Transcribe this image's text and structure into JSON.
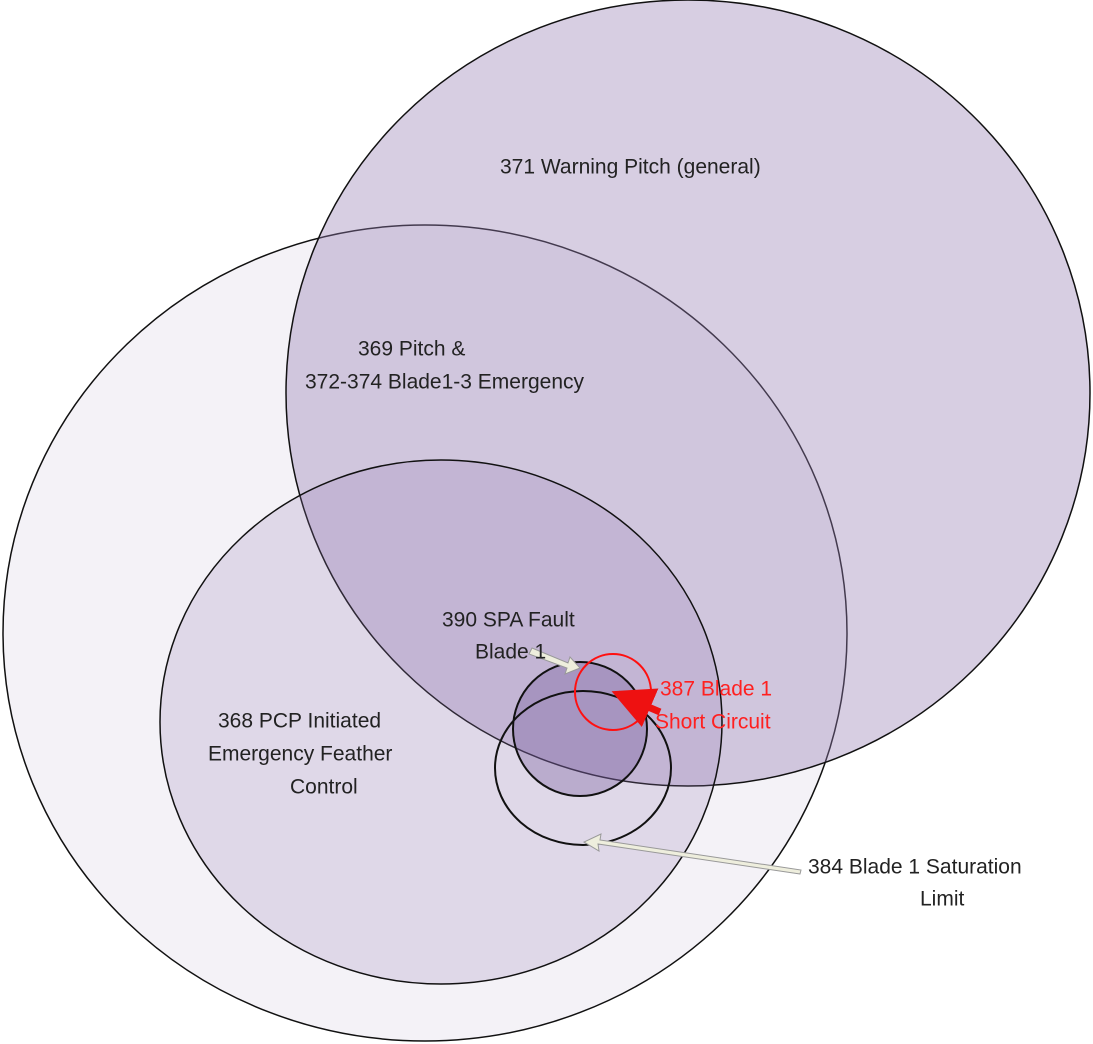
{
  "nodes": [
    {
      "lines": [
        "371 Warning Pitch (general)"
      ]
    },
    {
      "lines": [
        "369 Pitch &",
        "372-374 Blade1-3 Emergency"
      ]
    },
    {
      "lines": [
        "390 SPA Fault",
        "Blade 1"
      ]
    },
    {
      "lines": [
        "368 PCP Initiated",
        "Emergency Feather",
        "Control"
      ]
    },
    {
      "lines": [
        "387 Blade 1",
        "Short Circuit"
      ]
    },
    {
      "lines": [
        "384 Blade 1 Saturation",
        "Limit"
      ]
    }
  ]
}
